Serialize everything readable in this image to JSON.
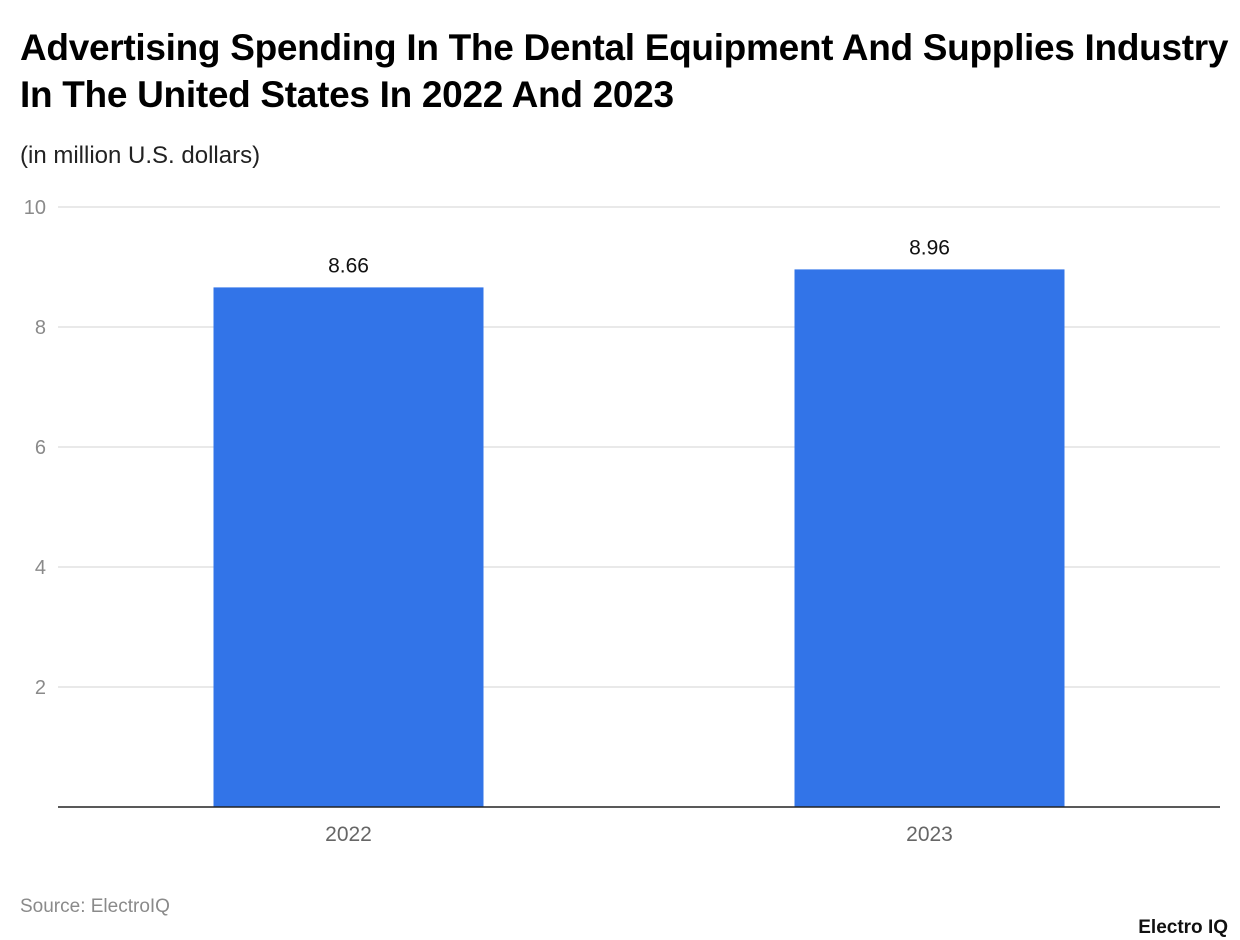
{
  "chart_data": {
    "type": "bar",
    "title": "Advertising Spending In The Dental Equipment And Supplies Industry In The United States In 2022 And 2023",
    "subtitle": "(in million U.S. dollars)",
    "categories": [
      "2022",
      "2023"
    ],
    "values": [
      8.66,
      8.96
    ],
    "data_labels": [
      "8.66",
      "8.96"
    ],
    "ylim": [
      0,
      10
    ],
    "yticks": [
      2,
      4,
      6,
      8,
      10
    ],
    "grid": true,
    "bar_color": "#3274e8",
    "xlabel": "",
    "ylabel": ""
  },
  "footer": {
    "source": "Source: ElectroIQ",
    "logo": "Electro IQ"
  }
}
